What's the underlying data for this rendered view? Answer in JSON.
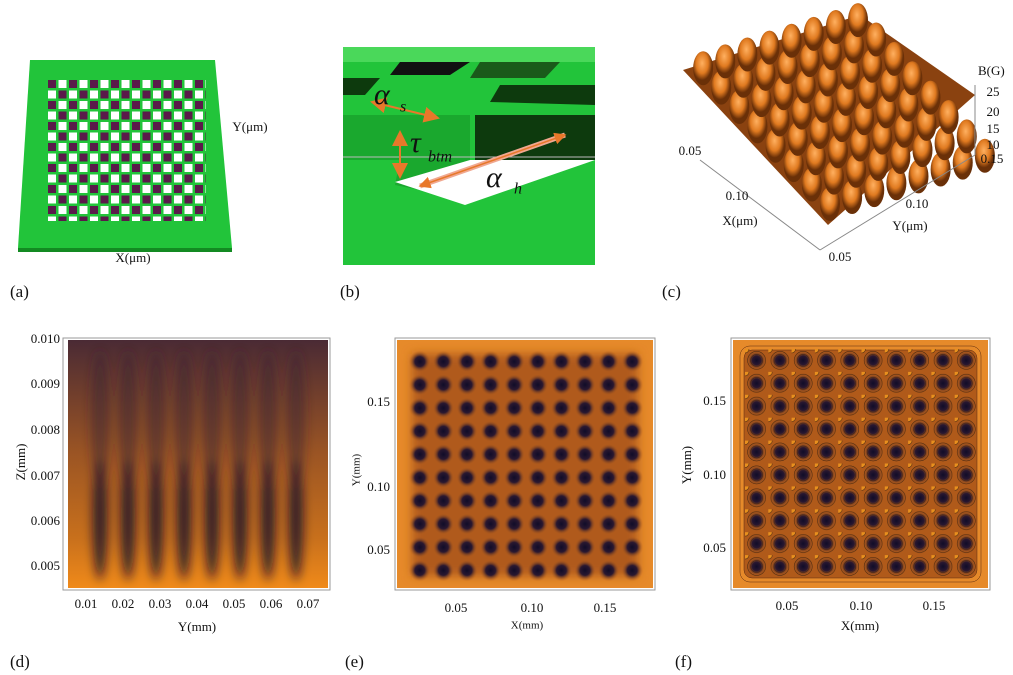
{
  "panels": [
    {
      "label": "(a)",
      "y_label": "Y(μm)",
      "x_label": "X(μm)"
    },
    {
      "label": "(b)",
      "alpha_s": {
        "symbol": "α",
        "subscript": "s"
      },
      "tau_btm": {
        "symbol": "τ",
        "subscript": "btm"
      },
      "alpha_h": {
        "symbol": "α",
        "subscript": "h"
      }
    },
    {
      "label": "(c)",
      "z_label": "B(G)",
      "z_ticks": [
        "25",
        "20",
        "15",
        "10"
      ],
      "x_label": "X(μm)",
      "x_ticks": [
        "0.05",
        "0.10"
      ],
      "y_label": "Y(μm)",
      "y_ticks": [
        "0.15",
        "0.10",
        "0.05"
      ]
    },
    {
      "label": "(d)",
      "y_label": "Z(mm)",
      "y_ticks": [
        "0.010",
        "0.009",
        "0.008",
        "0.007",
        "0.006",
        "0.005"
      ],
      "x_label": "Y(mm)",
      "x_ticks": [
        "0.01",
        "0.02",
        "0.03",
        "0.04",
        "0.05",
        "0.06",
        "0.07"
      ]
    },
    {
      "label": "(e)",
      "y_label": "Y(mm)",
      "y_ticks": [
        "0.15",
        "0.10",
        "0.05"
      ],
      "x_label": "X(mm)",
      "x_ticks": [
        "0.05",
        "0.10",
        "0.15"
      ]
    },
    {
      "label": "(f)",
      "y_label": "Y(mm)",
      "y_ticks": [
        "0.15",
        "0.10",
        "0.05"
      ],
      "x_label": "X(mm)",
      "x_ticks": [
        "0.05",
        "0.10",
        "0.15"
      ]
    }
  ]
}
